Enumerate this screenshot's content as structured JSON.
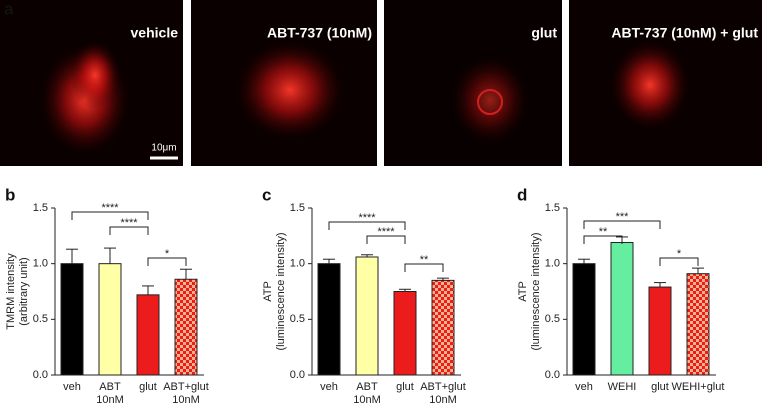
{
  "figure": {
    "panel_a": {
      "panel_label": "a",
      "images": [
        "vehicle",
        "ABT-737 (10nM)",
        "glut",
        "ABT-737 (10nM) + glut"
      ],
      "scale_bar": "10μm"
    }
  },
  "chart_data": [
    {
      "type": "bar",
      "panel_label": "b",
      "y_label": "TMRM intensity\n(arbitrary unit)",
      "categories": [
        "veh",
        "ABT\n10nM",
        "glut",
        "ABT+glut\n10nM"
      ],
      "values": [
        1.0,
        1.0,
        0.72,
        0.86
      ],
      "errors": [
        0.13,
        0.14,
        0.08,
        0.09
      ],
      "colors": [
        "#000000",
        "#ffffa6",
        "#ec1c1c",
        "#f26d2a"
      ],
      "patterned": [
        false,
        false,
        false,
        true
      ],
      "ylim": [
        0,
        1.5
      ],
      "yticks": [
        {
          "value": 0,
          "label": "0.0"
        },
        {
          "value": 0.5,
          "label": "0.5"
        },
        {
          "value": 1,
          "label": "1.0"
        },
        {
          "value": 1.5,
          "label": "1.5"
        }
      ],
      "annotations": [
        "****",
        "****",
        "*"
      ]
    },
    {
      "type": "bar",
      "panel_label": "c",
      "y_label": "ATP\n(luminescence intensity)",
      "categories": [
        "veh",
        "ABT\n10nM",
        "glut",
        "ABT+glut\n10nM"
      ],
      "values": [
        1.0,
        1.06,
        0.75,
        0.85
      ],
      "errors": [
        0.04,
        0.02,
        0.02,
        0.02
      ],
      "colors": [
        "#000000",
        "#ffffa6",
        "#ec1c1c",
        "#f26d2a"
      ],
      "patterned": [
        false,
        false,
        false,
        true
      ],
      "ylim": [
        0,
        1.5
      ],
      "yticks": [
        {
          "value": 0,
          "label": "0.0"
        },
        {
          "value": 0.5,
          "label": "0.5"
        },
        {
          "value": 1,
          "label": "1.0"
        },
        {
          "value": 1.5,
          "label": "1.5"
        }
      ],
      "annotations": [
        "****",
        "****",
        "**"
      ]
    },
    {
      "type": "bar",
      "panel_label": "d",
      "y_label": "ATP\n(luminescence intensity)",
      "categories": [
        "veh",
        "WEHI",
        "glut",
        "WEHI+glut"
      ],
      "values": [
        1.0,
        1.19,
        0.79,
        0.91
      ],
      "errors": [
        0.04,
        0.05,
        0.04,
        0.05
      ],
      "colors": [
        "#000000",
        "#66eea0",
        "#ec1c1c",
        "#f26d2a"
      ],
      "patterned": [
        false,
        false,
        false,
        true
      ],
      "ylim": [
        0,
        1.5
      ],
      "yticks": [
        {
          "value": 0,
          "label": "0.0"
        },
        {
          "value": 0.5,
          "label": "0.5"
        },
        {
          "value": 1,
          "label": "1.0"
        },
        {
          "value": 1.5,
          "label": "1.5"
        }
      ],
      "annotations": [
        "***",
        "**",
        "*"
      ]
    }
  ]
}
